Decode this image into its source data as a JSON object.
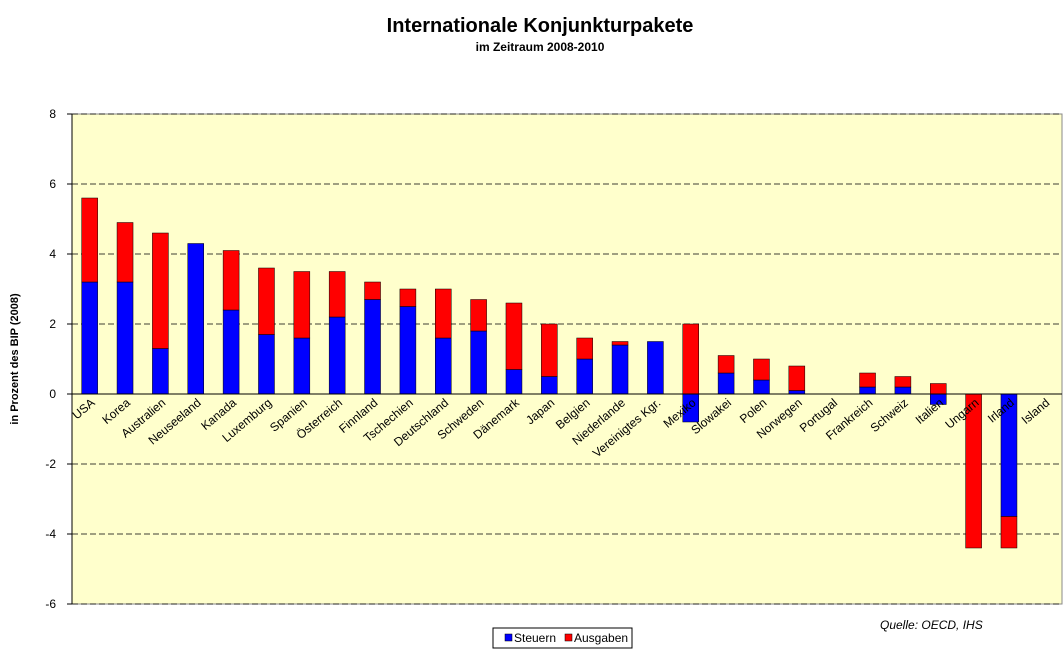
{
  "chart_data": {
    "type": "stacked_bar",
    "title": "Internationale Konjunkturpakete",
    "subtitle": "im Zeitraum 2008-2010",
    "y_label": "in Prozent des BIP (2008)",
    "source": "Quelle: OECD,  IHS",
    "categories": [
      "USA",
      "Korea",
      "Australien",
      "Neuseeland",
      "Kanada",
      "Luxemburg",
      "Spanien",
      "Österreich",
      "Finnland",
      "Tschechien",
      "Deutschland",
      "Schweden",
      "Dänemark",
      "Japan",
      "Belgien",
      "Niederlande",
      "Vereinigtes Kgr.",
      "Mexiko",
      "Slowakei",
      "Polen",
      "Norwegen",
      "Portugal",
      "Frankreich",
      "Schweiz",
      "Italien",
      "Ungarn",
      "Irland",
      "Island"
    ],
    "series": [
      {
        "name": "Steuern",
        "color": "#0000ff",
        "values": [
          3.2,
          3.2,
          1.3,
          4.3,
          2.4,
          1.7,
          1.6,
          2.2,
          2.7,
          2.5,
          1.6,
          1.8,
          0.7,
          0.5,
          1.0,
          1.4,
          1.5,
          -0.8,
          0.6,
          0.4,
          0.1,
          0,
          0.2,
          0.2,
          -0.3,
          0,
          -3.5,
          0
        ]
      },
      {
        "name": "Ausgaben",
        "color": "#ff0000",
        "values": [
          2.4,
          1.7,
          3.3,
          0,
          1.7,
          1.9,
          1.9,
          1.3,
          0.5,
          0.5,
          1.4,
          0.9,
          1.9,
          1.5,
          0.6,
          0.1,
          0,
          2.0,
          0.5,
          0.6,
          0.7,
          0,
          0.4,
          0.3,
          0.3,
          -4.4,
          -0.9,
          0
        ]
      }
    ],
    "ylim": [
      -6,
      8
    ],
    "yticks": [
      -6,
      -4,
      -2,
      0,
      2,
      4,
      6,
      8
    ],
    "grid": true,
    "legend": "bottom"
  }
}
